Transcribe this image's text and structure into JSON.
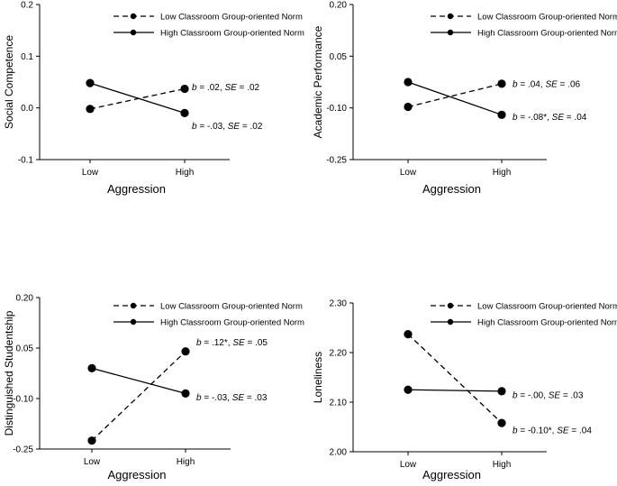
{
  "chart_data": [
    {
      "type": "line",
      "title": "",
      "xlabel": "Aggression",
      "ylabel": "Social Competence",
      "categories": [
        "Low",
        "High"
      ],
      "ylim": [
        -0.1,
        0.2
      ],
      "yticks": [
        "-0.1",
        "0.0",
        "0.1",
        "0.2"
      ],
      "legend_position": "top-right",
      "grid": false,
      "series": [
        {
          "name": "Low Classroom Group-oriented Norm",
          "style": "dashed",
          "values": [
            -0.002,
            0.037
          ],
          "annotation": {
            "b": ".02",
            "se": ".02",
            "star": false
          }
        },
        {
          "name": "High Classroom Group-oriented Norm",
          "style": "solid",
          "values": [
            0.048,
            -0.01
          ],
          "annotation": {
            "b": "-.03",
            "se": ".02",
            "star": false
          }
        }
      ]
    },
    {
      "type": "line",
      "title": "",
      "xlabel": "Aggression",
      "ylabel": "Academic Performance",
      "categories": [
        "Low",
        "High"
      ],
      "ylim": [
        -0.25,
        0.2
      ],
      "yticks": [
        "-0.25",
        "-0.10",
        "0.05",
        "0.20"
      ],
      "legend_position": "top-right",
      "grid": false,
      "series": [
        {
          "name": "Low Classroom Group-oriented Norm",
          "style": "dashed",
          "values": [
            -0.097,
            -0.03
          ],
          "annotation": {
            "b": ".04",
            "se": ".06",
            "star": false
          }
        },
        {
          "name": "High Classroom Group-oriented Norm",
          "style": "solid",
          "values": [
            -0.025,
            -0.12
          ],
          "annotation": {
            "b": "-.08",
            "se": ".04",
            "star": true
          }
        }
      ]
    },
    {
      "type": "line",
      "title": "",
      "xlabel": "Aggression",
      "ylabel": "Distinguished Studentship",
      "categories": [
        "Low",
        "High"
      ],
      "ylim": [
        -0.25,
        0.2
      ],
      "yticks": [
        "-0.25",
        "-0.10",
        "0.05",
        "0.20"
      ],
      "legend_position": "top-right",
      "grid": false,
      "series": [
        {
          "name": "Low Classroom Group-oriented Norm",
          "style": "dashed",
          "values": [
            -0.225,
            0.04
          ],
          "annotation": {
            "b": ".12",
            "se": ".05",
            "star": true
          }
        },
        {
          "name": "High Classroom Group-oriented Norm",
          "style": "solid",
          "values": [
            -0.01,
            -0.085
          ],
          "annotation": {
            "b": "-.03",
            "se": ".03",
            "star": false
          }
        }
      ]
    },
    {
      "type": "line",
      "title": "",
      "xlabel": "Aggression",
      "ylabel": "Loneliness",
      "categories": [
        "Low",
        "High"
      ],
      "ylim": [
        2.0,
        2.3
      ],
      "yticks": [
        "2.00",
        "2.10",
        "2.20",
        "2.30"
      ],
      "legend_position": "top-right",
      "grid": false,
      "series": [
        {
          "name": "Low Classroom Group-oriented Norm",
          "style": "dashed",
          "values": [
            2.237,
            2.058
          ],
          "annotation": {
            "b": "-0.10",
            "se": ".04",
            "star": true
          }
        },
        {
          "name": "High Classroom Group-oriented Norm",
          "style": "solid",
          "values": [
            2.125,
            2.122
          ],
          "annotation": {
            "b": "-.00",
            "se": ".03",
            "star": false
          }
        }
      ]
    }
  ]
}
